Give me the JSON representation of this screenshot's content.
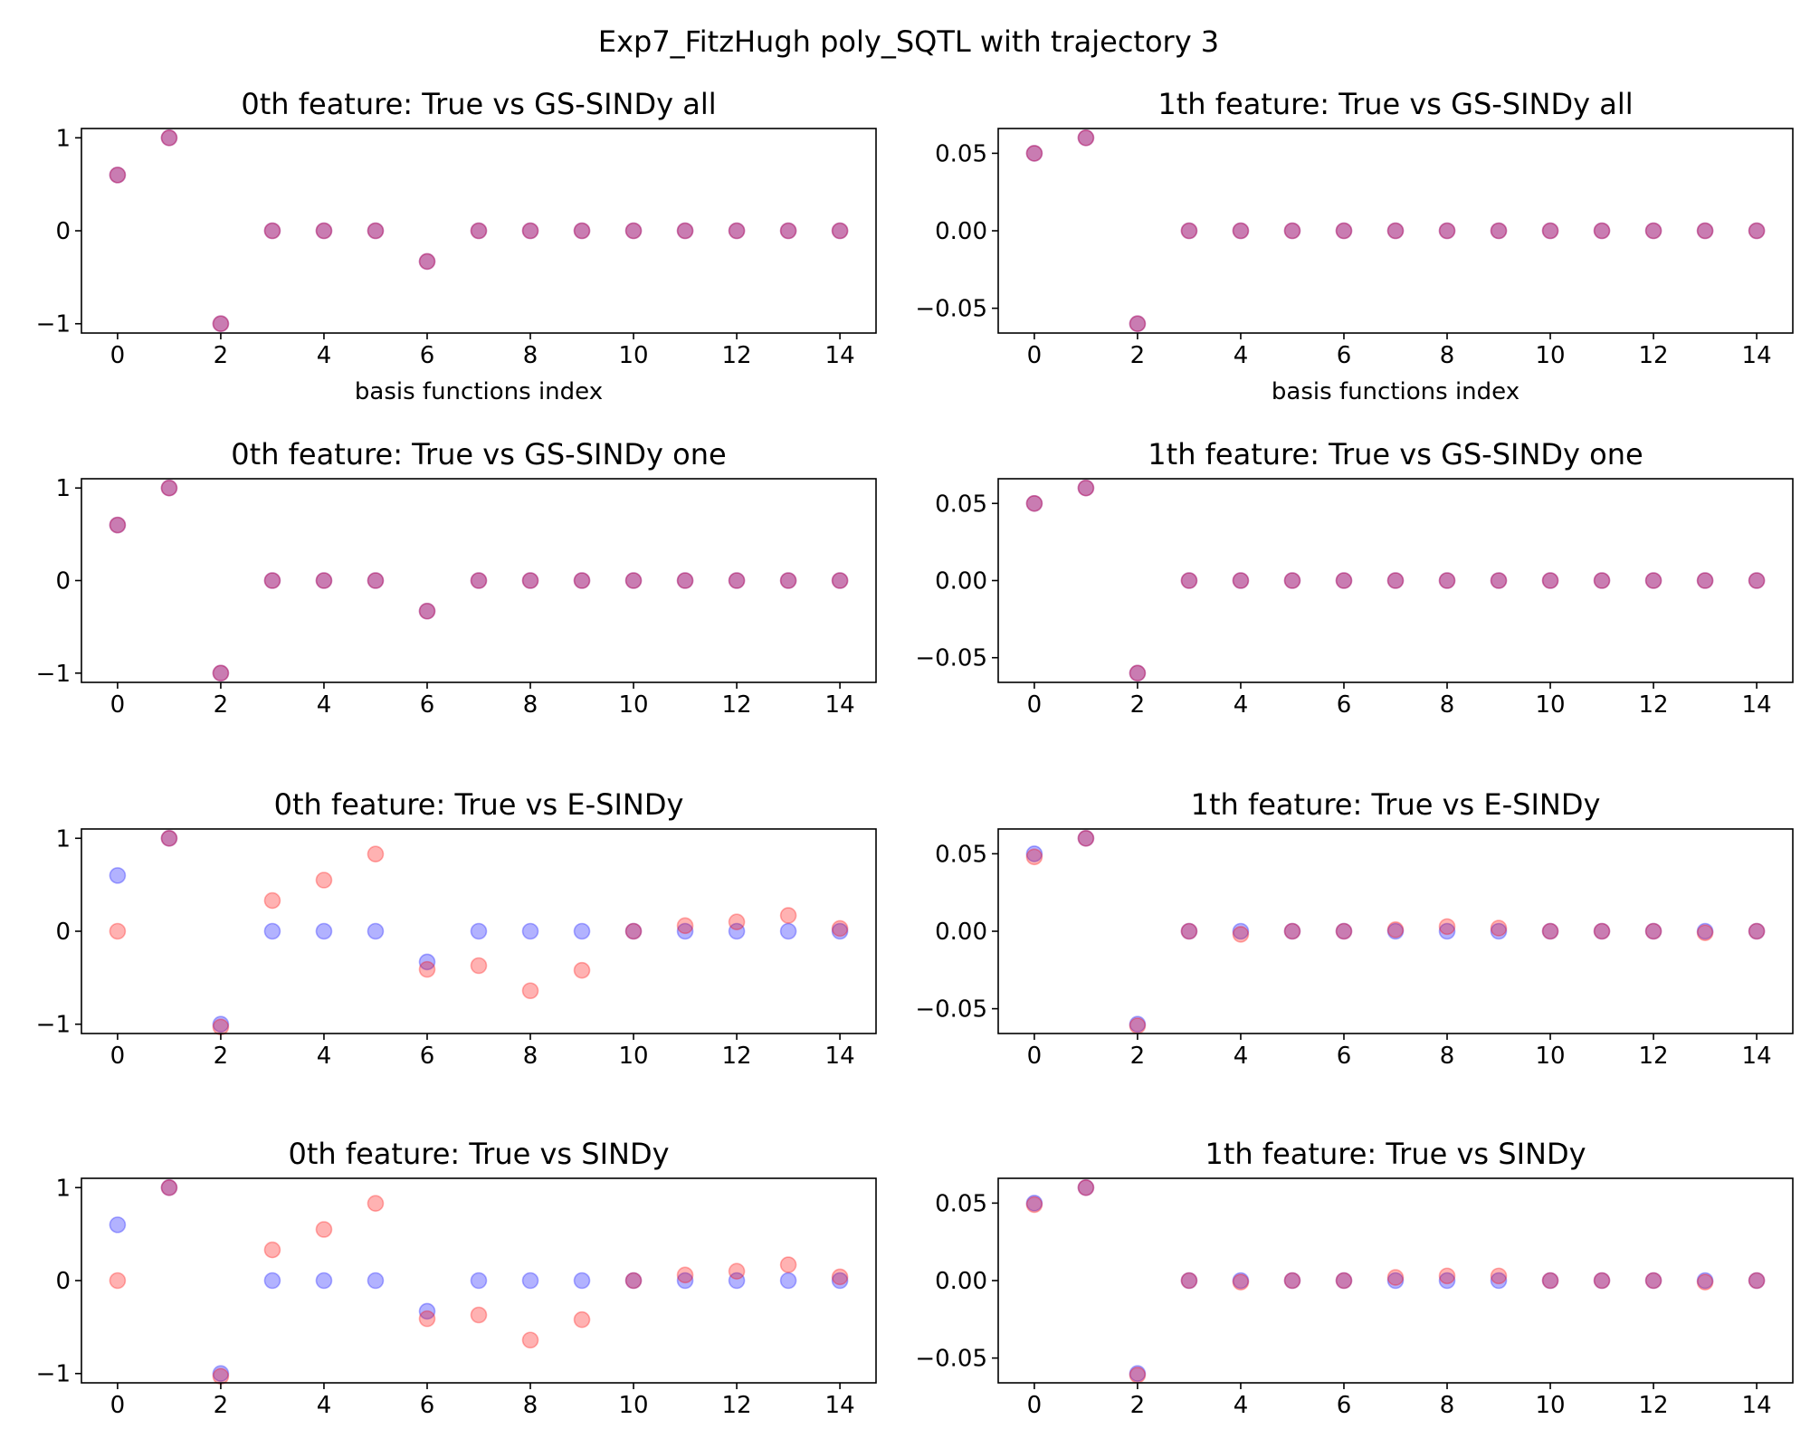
{
  "suptitle": "Exp7_FitzHugh poly_SQTL with trajectory 3",
  "colors": {
    "true_marker": "#0000ff",
    "estimated_marker": "#ff0000"
  },
  "chart_data": [
    {
      "type": "scatter",
      "title": "0th feature: True vs GS-SINDy all",
      "xlabel": "basis functions index",
      "x": [
        0,
        1,
        2,
        3,
        4,
        5,
        6,
        7,
        8,
        9,
        10,
        11,
        12,
        13,
        14
      ],
      "series": [
        {
          "values": [
            0.6,
            1,
            -1,
            0,
            0,
            0,
            -0.33,
            0,
            0,
            0,
            0,
            0,
            0,
            0,
            0
          ]
        },
        {
          "values": [
            0.6,
            1,
            -1,
            0,
            0,
            0,
            -0.33,
            0,
            0,
            0,
            0,
            0,
            0,
            0,
            0
          ]
        }
      ],
      "xlim": [
        -0.7,
        14.7
      ],
      "ylim": [
        -1.1,
        1.1
      ],
      "xticks": [
        "0",
        "2",
        "4",
        "6",
        "8",
        "10",
        "12",
        "14"
      ],
      "yticks": [
        {
          "v": 1,
          "label": "1"
        },
        {
          "v": 0,
          "label": "0"
        },
        {
          "v": -1,
          "label": "−1"
        }
      ]
    },
    {
      "type": "scatter",
      "title": "1th feature: True vs GS-SINDy all",
      "xlabel": "basis functions index",
      "x": [
        0,
        1,
        2,
        3,
        4,
        5,
        6,
        7,
        8,
        9,
        10,
        11,
        12,
        13,
        14
      ],
      "series": [
        {
          "values": [
            0.05,
            0.06,
            -0.06,
            0,
            0,
            0,
            0,
            0,
            0,
            0,
            0,
            0,
            0,
            0,
            0
          ]
        },
        {
          "values": [
            0.05,
            0.06,
            -0.06,
            0,
            0,
            0,
            0,
            0,
            0,
            0,
            0,
            0,
            0,
            0,
            0
          ]
        }
      ],
      "xlim": [
        -0.7,
        14.7
      ],
      "ylim": [
        -0.066,
        0.066
      ],
      "xticks": [
        "0",
        "2",
        "4",
        "6",
        "8",
        "10",
        "12",
        "14"
      ],
      "yticks": [
        {
          "v": 0.05,
          "label": "0.05"
        },
        {
          "v": 0,
          "label": "0.00"
        },
        {
          "v": -0.05,
          "label": "−0.05"
        }
      ]
    },
    {
      "type": "scatter",
      "title": "0th feature: True vs GS-SINDy one",
      "xlabel": "",
      "x": [
        0,
        1,
        2,
        3,
        4,
        5,
        6,
        7,
        8,
        9,
        10,
        11,
        12,
        13,
        14
      ],
      "series": [
        {
          "values": [
            0.6,
            1,
            -1,
            0,
            0,
            0,
            -0.33,
            0,
            0,
            0,
            0,
            0,
            0,
            0,
            0
          ]
        },
        {
          "values": [
            0.6,
            1,
            -1,
            0,
            0,
            0,
            -0.33,
            0,
            0,
            0,
            0,
            0,
            0,
            0,
            0
          ]
        }
      ],
      "xlim": [
        -0.7,
        14.7
      ],
      "ylim": [
        -1.1,
        1.1
      ],
      "xticks": [
        "0",
        "2",
        "4",
        "6",
        "8",
        "10",
        "12",
        "14"
      ],
      "yticks": [
        {
          "v": 1,
          "label": "1"
        },
        {
          "v": 0,
          "label": "0"
        },
        {
          "v": -1,
          "label": "−1"
        }
      ]
    },
    {
      "type": "scatter",
      "title": "1th feature: True vs GS-SINDy one",
      "xlabel": "",
      "x": [
        0,
        1,
        2,
        3,
        4,
        5,
        6,
        7,
        8,
        9,
        10,
        11,
        12,
        13,
        14
      ],
      "series": [
        {
          "values": [
            0.05,
            0.06,
            -0.06,
            0,
            0,
            0,
            0,
            0,
            0,
            0,
            0,
            0,
            0,
            0,
            0
          ]
        },
        {
          "values": [
            0.05,
            0.06,
            -0.06,
            0,
            0,
            0,
            0,
            0,
            0,
            0,
            0,
            0,
            0,
            0,
            0
          ]
        }
      ],
      "xlim": [
        -0.7,
        14.7
      ],
      "ylim": [
        -0.066,
        0.066
      ],
      "xticks": [
        "0",
        "2",
        "4",
        "6",
        "8",
        "10",
        "12",
        "14"
      ],
      "yticks": [
        {
          "v": 0.05,
          "label": "0.05"
        },
        {
          "v": 0,
          "label": "0.00"
        },
        {
          "v": -0.05,
          "label": "−0.05"
        }
      ]
    },
    {
      "type": "scatter",
      "title": "0th feature: True vs E-SINDy",
      "xlabel": "",
      "x": [
        0,
        1,
        2,
        3,
        4,
        5,
        6,
        7,
        8,
        9,
        10,
        11,
        12,
        13,
        14
      ],
      "series": [
        {
          "values": [
            0.6,
            1,
            -1,
            0,
            0,
            0,
            -0.33,
            0,
            0,
            0,
            0,
            0,
            0,
            0,
            0
          ]
        },
        {
          "values": [
            0,
            1,
            -1.03,
            0.33,
            0.55,
            0.83,
            -0.41,
            -0.37,
            -0.64,
            -0.42,
            0,
            0.06,
            0.1,
            0.17,
            0.03
          ]
        }
      ],
      "xlim": [
        -0.7,
        14.7
      ],
      "ylim": [
        -1.1,
        1.1
      ],
      "xticks": [
        "0",
        "2",
        "4",
        "6",
        "8",
        "10",
        "12",
        "14"
      ],
      "yticks": [
        {
          "v": 1,
          "label": "1"
        },
        {
          "v": 0,
          "label": "0"
        },
        {
          "v": -1,
          "label": "−1"
        }
      ]
    },
    {
      "type": "scatter",
      "title": "1th feature: True vs E-SINDy",
      "xlabel": "",
      "x": [
        0,
        1,
        2,
        3,
        4,
        5,
        6,
        7,
        8,
        9,
        10,
        11,
        12,
        13,
        14
      ],
      "series": [
        {
          "values": [
            0.05,
            0.06,
            -0.06,
            0,
            0,
            0,
            0,
            0,
            0,
            0,
            0,
            0,
            0,
            0,
            0
          ]
        },
        {
          "values": [
            0.048,
            0.06,
            -0.061,
            0,
            -0.002,
            0,
            0,
            0.001,
            0.003,
            0.002,
            0,
            0,
            0,
            -0.001,
            0
          ]
        }
      ],
      "xlim": [
        -0.7,
        14.7
      ],
      "ylim": [
        -0.066,
        0.066
      ],
      "xticks": [
        "0",
        "2",
        "4",
        "6",
        "8",
        "10",
        "12",
        "14"
      ],
      "yticks": [
        {
          "v": 0.05,
          "label": "0.05"
        },
        {
          "v": 0,
          "label": "0.00"
        },
        {
          "v": -0.05,
          "label": "−0.05"
        }
      ]
    },
    {
      "type": "scatter",
      "title": "0th feature: True vs SINDy",
      "xlabel": "",
      "x": [
        0,
        1,
        2,
        3,
        4,
        5,
        6,
        7,
        8,
        9,
        10,
        11,
        12,
        13,
        14
      ],
      "series": [
        {
          "values": [
            0.6,
            1,
            -1,
            0,
            0,
            0,
            -0.33,
            0,
            0,
            0,
            0,
            0,
            0,
            0,
            0
          ]
        },
        {
          "values": [
            0,
            1,
            -1.03,
            0.33,
            0.55,
            0.83,
            -0.41,
            -0.37,
            -0.64,
            -0.42,
            0,
            0.06,
            0.1,
            0.17,
            0.04
          ]
        }
      ],
      "xlim": [
        -0.7,
        14.7
      ],
      "ylim": [
        -1.1,
        1.1
      ],
      "xticks": [
        "0",
        "2",
        "4",
        "6",
        "8",
        "10",
        "12",
        "14"
      ],
      "yticks": [
        {
          "v": 1,
          "label": "1"
        },
        {
          "v": 0,
          "label": "0"
        },
        {
          "v": -1,
          "label": "−1"
        }
      ]
    },
    {
      "type": "scatter",
      "title": "1th feature: True vs SINDy",
      "xlabel": "",
      "x": [
        0,
        1,
        2,
        3,
        4,
        5,
        6,
        7,
        8,
        9,
        10,
        11,
        12,
        13,
        14
      ],
      "series": [
        {
          "values": [
            0.05,
            0.06,
            -0.06,
            0,
            0,
            0,
            0,
            0,
            0,
            0,
            0,
            0,
            0,
            0,
            0
          ]
        },
        {
          "values": [
            0.049,
            0.06,
            -0.061,
            0,
            -0.001,
            0,
            0,
            0.002,
            0.003,
            0.003,
            0,
            0,
            0,
            -0.001,
            0
          ]
        }
      ],
      "xlim": [
        -0.7,
        14.7
      ],
      "ylim": [
        -0.066,
        0.066
      ],
      "xticks": [
        "0",
        "2",
        "4",
        "6",
        "8",
        "10",
        "12",
        "14"
      ],
      "yticks": [
        {
          "v": 0.05,
          "label": "0.05"
        },
        {
          "v": 0,
          "label": "0.00"
        },
        {
          "v": -0.05,
          "label": "−0.05"
        }
      ]
    }
  ]
}
